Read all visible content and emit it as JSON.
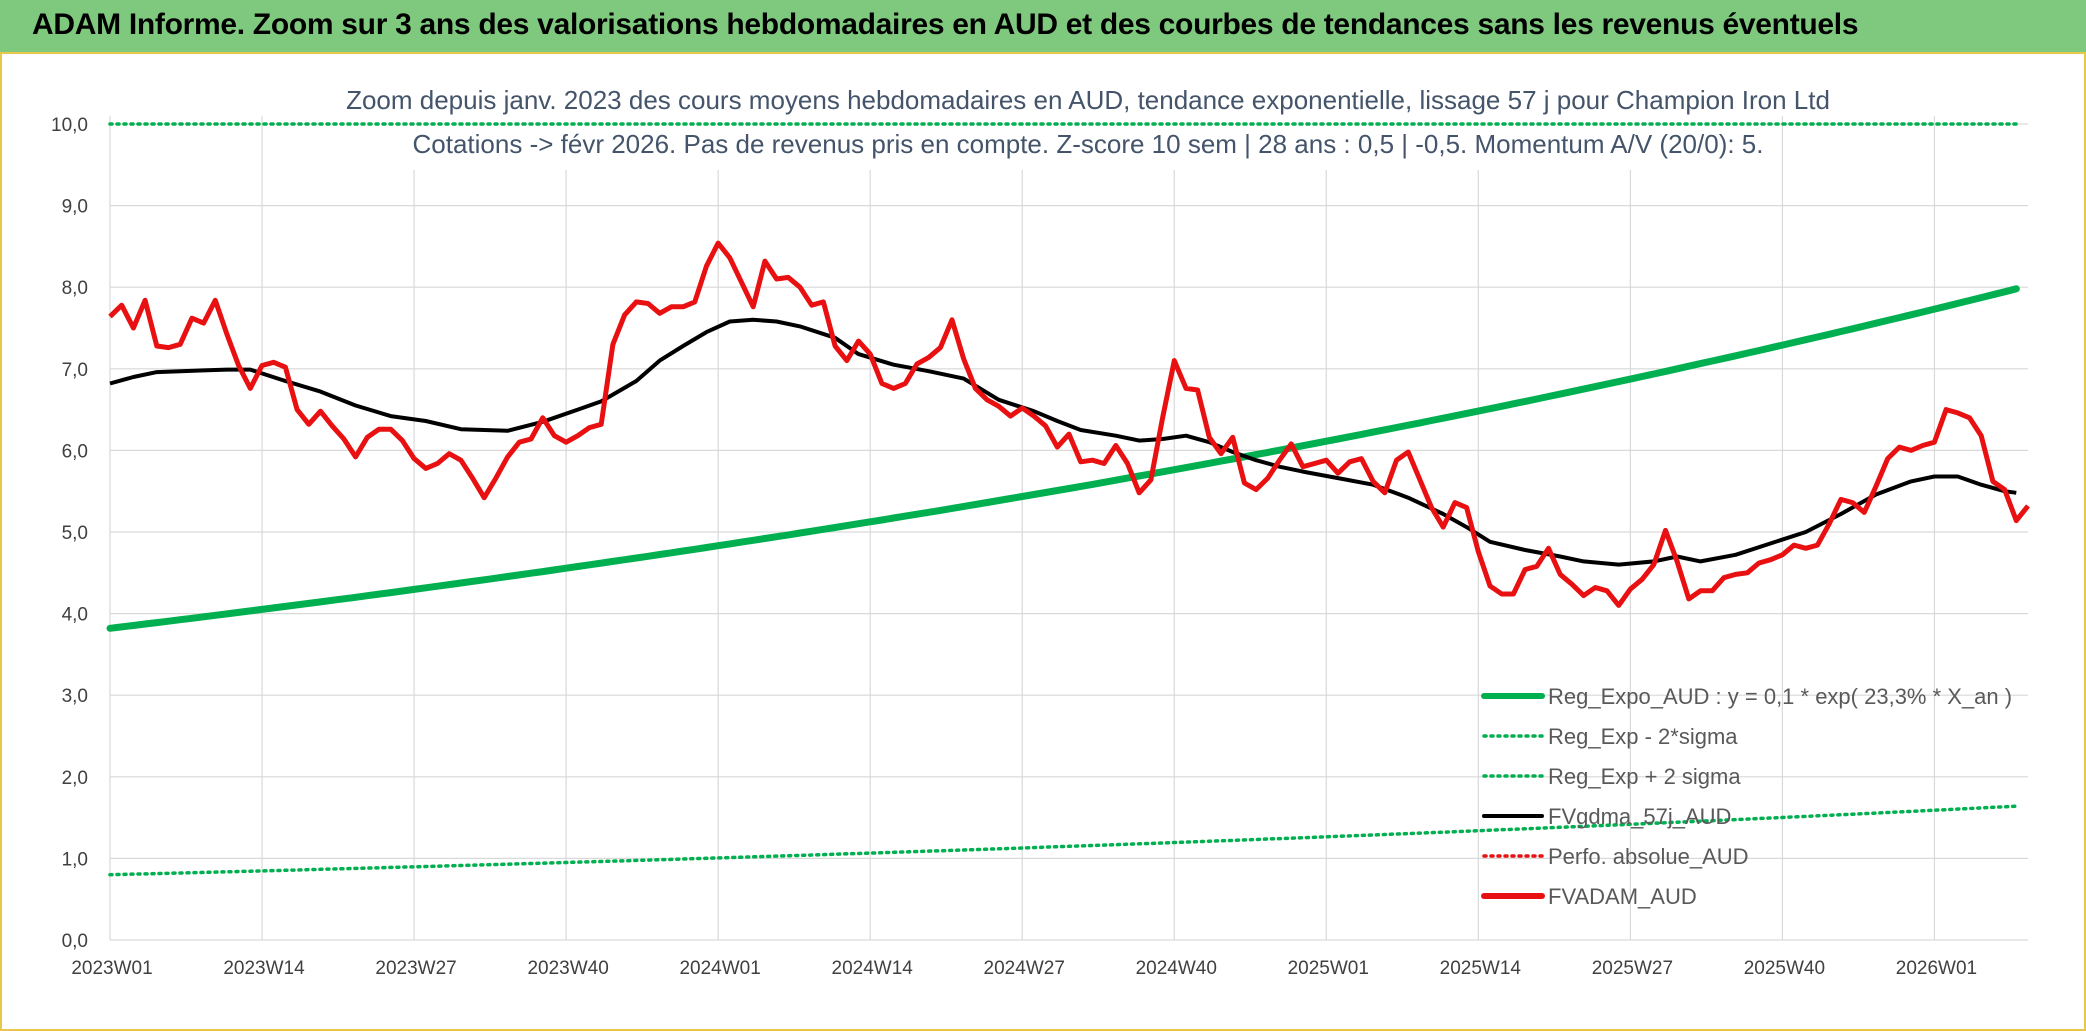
{
  "banner": {
    "title": "ADAM Informe. Zoom sur 3 ans des valorisations hebdomadaires en AUD et des courbes de tendances sans les revenus éventuels"
  },
  "colors": {
    "banner_bg": "#7fc97f",
    "frame": "#e8c84a",
    "reg_expo": "#00b050",
    "fvgdma": "#000000",
    "fvadam": "#e81010",
    "perfo": "#e81010",
    "grid": "#d9d9d9"
  },
  "chart_data": {
    "type": "line",
    "title_line1": "Zoom depuis janv. 2023 des cours moyens hebdomadaires en AUD, tendance exponentielle, lissage 57 j pour Champion Iron Ltd",
    "title_line2": "Cotations -> févr 2026. Pas de revenus pris en compte. Z-score 10 sem | 28 ans : 0,5 | -0,5. Momentum A/V (20/0): 5.",
    "ylim": [
      0,
      10
    ],
    "y_ticks": [
      "0,0",
      "1,0",
      "2,0",
      "3,0",
      "4,0",
      "5,0",
      "6,0",
      "7,0",
      "8,0",
      "9,0",
      "10,0"
    ],
    "x_range": [
      0,
      163
    ],
    "x_ticks": [
      {
        "label": "2023W01",
        "index": 0
      },
      {
        "label": "2023W14",
        "index": 13
      },
      {
        "label": "2023W27",
        "index": 26
      },
      {
        "label": "2023W40",
        "index": 39
      },
      {
        "label": "2024W01",
        "index": 52
      },
      {
        "label": "2024W14",
        "index": 65
      },
      {
        "label": "2024W27",
        "index": 78
      },
      {
        "label": "2024W40",
        "index": 91
      },
      {
        "label": "2025W01",
        "index": 104
      },
      {
        "label": "2025W14",
        "index": 117
      },
      {
        "label": "2025W27",
        "index": 130
      },
      {
        "label": "2025W40",
        "index": 143
      },
      {
        "label": "2026W01",
        "index": 156
      }
    ],
    "legend": [
      {
        "label": "Reg_Expo_AUD : y = 0,1 * exp( 23,3% *  X_an )",
        "style": "thick",
        "color": "#00b050"
      },
      {
        "label": "Reg_Exp - 2*sigma",
        "style": "dotted",
        "color": "#00b050"
      },
      {
        "label": "Reg_Exp + 2 sigma",
        "style": "dotted",
        "color": "#00b050"
      },
      {
        "label": "FVgdma_57j_AUD",
        "style": "solid",
        "color": "#000000"
      },
      {
        "label": "Perfo. absolue_AUD",
        "style": "dotted",
        "color": "#e81010"
      },
      {
        "label": "FVADAM_AUD",
        "style": "thick",
        "color": "#e81010"
      }
    ],
    "series": [
      {
        "name": "Reg_Expo_AUD : y = 0,1 * exp( 23,3% *  X_an )",
        "type": "expo",
        "start": 3.82,
        "end": 7.98,
        "x_start": 0,
        "x_end": 163
      },
      {
        "name": "Reg_Exp - 2*sigma",
        "type": "expo",
        "start": 0.8,
        "end": 1.64,
        "x_start": 0,
        "x_end": 163
      },
      {
        "name": "Reg_Exp + 2 sigma",
        "type": "expo",
        "start": 10.0,
        "end": 10.0,
        "x_start": 0,
        "x_end": 163
      },
      {
        "name": "FVgdma_57j_AUD",
        "type": "points",
        "points": [
          [
            0,
            6.82
          ],
          [
            2,
            6.9
          ],
          [
            4,
            6.96
          ],
          [
            6,
            6.97
          ],
          [
            8,
            6.98
          ],
          [
            10,
            6.99
          ],
          [
            12,
            6.99
          ],
          [
            15,
            6.85
          ],
          [
            18,
            6.72
          ],
          [
            21,
            6.55
          ],
          [
            24,
            6.42
          ],
          [
            27,
            6.36
          ],
          [
            30,
            6.26
          ],
          [
            34,
            6.24
          ],
          [
            37,
            6.35
          ],
          [
            40,
            6.5
          ],
          [
            42,
            6.6
          ],
          [
            45,
            6.85
          ],
          [
            47,
            7.1
          ],
          [
            49,
            7.28
          ],
          [
            51,
            7.45
          ],
          [
            53,
            7.58
          ],
          [
            55,
            7.6
          ],
          [
            57,
            7.58
          ],
          [
            59,
            7.52
          ],
          [
            62,
            7.38
          ],
          [
            64,
            7.18
          ],
          [
            67,
            7.05
          ],
          [
            70,
            6.97
          ],
          [
            73,
            6.88
          ],
          [
            76,
            6.62
          ],
          [
            79,
            6.48
          ],
          [
            81,
            6.36
          ],
          [
            83,
            6.25
          ],
          [
            86,
            6.18
          ],
          [
            88,
            6.12
          ],
          [
            90,
            6.14
          ],
          [
            92,
            6.18
          ],
          [
            94,
            6.1
          ],
          [
            96,
            5.98
          ],
          [
            98,
            5.88
          ],
          [
            100,
            5.8
          ],
          [
            102,
            5.74
          ],
          [
            105,
            5.66
          ],
          [
            108,
            5.58
          ],
          [
            111,
            5.42
          ],
          [
            114,
            5.22
          ],
          [
            116,
            5.06
          ],
          [
            118,
            4.88
          ],
          [
            121,
            4.78
          ],
          [
            124,
            4.7
          ],
          [
            126,
            4.64
          ],
          [
            129,
            4.6
          ],
          [
            132,
            4.64
          ],
          [
            134,
            4.7
          ],
          [
            136,
            4.64
          ],
          [
            139,
            4.72
          ],
          [
            142,
            4.86
          ],
          [
            145,
            5.0
          ],
          [
            148,
            5.22
          ],
          [
            151,
            5.46
          ],
          [
            154,
            5.62
          ],
          [
            156,
            5.68
          ],
          [
            158,
            5.68
          ],
          [
            160,
            5.58
          ],
          [
            162,
            5.5
          ],
          [
            163,
            5.48
          ]
        ]
      },
      {
        "name": "FVADAM_AUD",
        "type": "points",
        "points": [
          [
            0,
            7.64
          ],
          [
            1,
            7.78
          ],
          [
            2,
            7.5
          ],
          [
            3,
            7.84
          ],
          [
            4,
            7.28
          ],
          [
            5,
            7.26
          ],
          [
            6,
            7.3
          ],
          [
            7,
            7.62
          ],
          [
            8,
            7.56
          ],
          [
            9,
            7.84
          ],
          [
            10,
            7.42
          ],
          [
            11,
            7.04
          ],
          [
            12,
            6.76
          ],
          [
            13,
            7.04
          ],
          [
            14,
            7.08
          ],
          [
            15,
            7.02
          ],
          [
            16,
            6.5
          ],
          [
            17,
            6.32
          ],
          [
            18,
            6.48
          ],
          [
            19,
            6.3
          ],
          [
            20,
            6.14
          ],
          [
            21,
            5.92
          ],
          [
            22,
            6.16
          ],
          [
            23,
            6.26
          ],
          [
            24,
            6.26
          ],
          [
            25,
            6.12
          ],
          [
            26,
            5.9
          ],
          [
            27,
            5.78
          ],
          [
            28,
            5.84
          ],
          [
            29,
            5.96
          ],
          [
            30,
            5.88
          ],
          [
            31,
            5.66
          ],
          [
            32,
            5.42
          ],
          [
            33,
            5.66
          ],
          [
            34,
            5.92
          ],
          [
            35,
            6.1
          ],
          [
            36,
            6.14
          ],
          [
            37,
            6.4
          ],
          [
            38,
            6.18
          ],
          [
            39,
            6.1
          ],
          [
            40,
            6.18
          ],
          [
            41,
            6.28
          ],
          [
            42,
            6.32
          ],
          [
            43,
            7.3
          ],
          [
            44,
            7.66
          ],
          [
            45,
            7.82
          ],
          [
            46,
            7.8
          ],
          [
            47,
            7.68
          ],
          [
            48,
            7.76
          ],
          [
            49,
            7.76
          ],
          [
            50,
            7.82
          ],
          [
            51,
            8.26
          ],
          [
            52,
            8.54
          ],
          [
            53,
            8.36
          ],
          [
            54,
            8.06
          ],
          [
            55,
            7.76
          ],
          [
            56,
            8.32
          ],
          [
            57,
            8.1
          ],
          [
            58,
            8.12
          ],
          [
            59,
            8.0
          ],
          [
            60,
            7.78
          ],
          [
            61,
            7.82
          ],
          [
            62,
            7.28
          ],
          [
            63,
            7.1
          ],
          [
            64,
            7.34
          ],
          [
            65,
            7.18
          ],
          [
            66,
            6.82
          ],
          [
            67,
            6.76
          ],
          [
            68,
            6.82
          ],
          [
            69,
            7.06
          ],
          [
            70,
            7.14
          ],
          [
            71,
            7.26
          ],
          [
            72,
            7.6
          ],
          [
            73,
            7.12
          ],
          [
            74,
            6.76
          ],
          [
            75,
            6.62
          ],
          [
            76,
            6.54
          ],
          [
            77,
            6.42
          ],
          [
            78,
            6.52
          ],
          [
            79,
            6.42
          ],
          [
            80,
            6.3
          ],
          [
            81,
            6.04
          ],
          [
            82,
            6.2
          ],
          [
            83,
            5.86
          ],
          [
            84,
            5.88
          ],
          [
            85,
            5.84
          ],
          [
            86,
            6.06
          ],
          [
            87,
            5.84
          ],
          [
            88,
            5.48
          ],
          [
            89,
            5.64
          ],
          [
            90,
            6.4
          ],
          [
            91,
            7.1
          ],
          [
            92,
            6.76
          ],
          [
            93,
            6.74
          ],
          [
            94,
            6.16
          ],
          [
            95,
            5.96
          ],
          [
            96,
            6.16
          ],
          [
            97,
            5.6
          ],
          [
            98,
            5.52
          ],
          [
            99,
            5.66
          ],
          [
            100,
            5.88
          ],
          [
            101,
            6.08
          ],
          [
            102,
            5.8
          ],
          [
            103,
            5.84
          ],
          [
            104,
            5.88
          ],
          [
            105,
            5.72
          ],
          [
            106,
            5.86
          ],
          [
            107,
            5.9
          ],
          [
            108,
            5.62
          ],
          [
            109,
            5.48
          ],
          [
            110,
            5.88
          ],
          [
            111,
            5.98
          ],
          [
            112,
            5.64
          ],
          [
            113,
            5.3
          ],
          [
            114,
            5.06
          ],
          [
            115,
            5.36
          ],
          [
            116,
            5.3
          ],
          [
            117,
            4.76
          ],
          [
            118,
            4.34
          ],
          [
            119,
            4.24
          ],
          [
            120,
            4.24
          ],
          [
            121,
            4.54
          ],
          [
            122,
            4.58
          ],
          [
            123,
            4.8
          ],
          [
            124,
            4.48
          ],
          [
            125,
            4.36
          ],
          [
            126,
            4.22
          ],
          [
            127,
            4.32
          ],
          [
            128,
            4.28
          ],
          [
            129,
            4.1
          ],
          [
            130,
            4.3
          ],
          [
            131,
            4.42
          ],
          [
            132,
            4.6
          ],
          [
            133,
            5.02
          ],
          [
            134,
            4.64
          ],
          [
            135,
            4.18
          ],
          [
            136,
            4.28
          ],
          [
            137,
            4.28
          ],
          [
            138,
            4.44
          ],
          [
            139,
            4.48
          ],
          [
            140,
            4.5
          ],
          [
            141,
            4.62
          ],
          [
            142,
            4.66
          ],
          [
            143,
            4.72
          ],
          [
            144,
            4.84
          ],
          [
            145,
            4.8
          ],
          [
            146,
            4.84
          ],
          [
            147,
            5.1
          ],
          [
            148,
            5.4
          ],
          [
            149,
            5.36
          ],
          [
            150,
            5.24
          ],
          [
            151,
            5.56
          ],
          [
            152,
            5.9
          ],
          [
            153,
            6.04
          ],
          [
            154,
            6.0
          ],
          [
            155,
            6.06
          ],
          [
            156,
            6.1
          ],
          [
            157,
            6.5
          ],
          [
            158,
            6.46
          ],
          [
            159,
            6.4
          ],
          [
            160,
            6.18
          ],
          [
            161,
            5.62
          ],
          [
            162,
            5.52
          ],
          [
            163,
            5.14
          ],
          [
            164,
            5.32
          ]
        ]
      }
    ]
  }
}
